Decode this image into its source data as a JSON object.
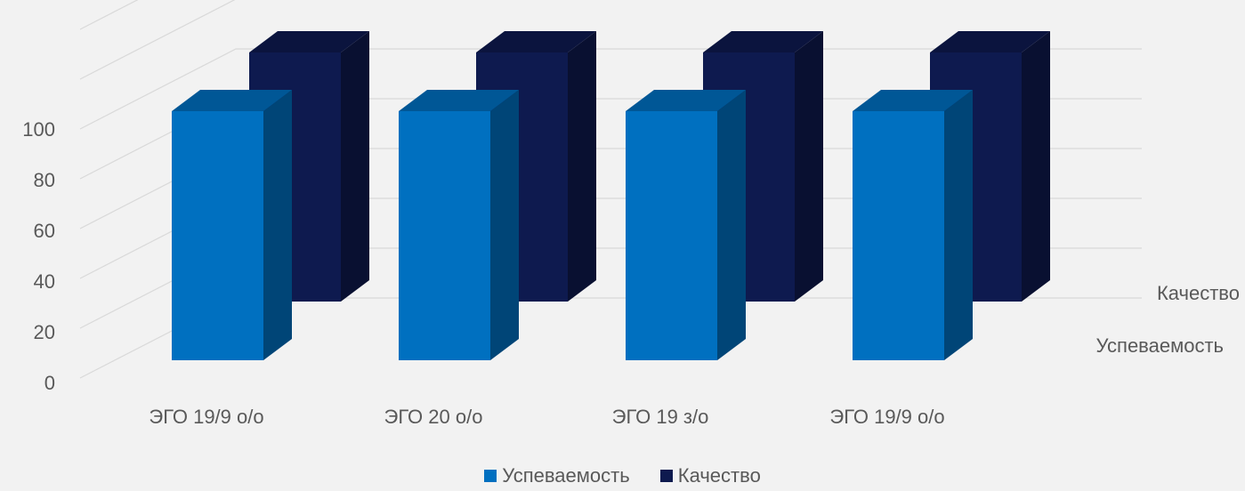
{
  "chart_data": {
    "type": "bar",
    "style": "3d-column",
    "categories": [
      "ЭГО 19/9 о/о",
      "ЭГО 20 о/о",
      "ЭГО 19 з/о",
      "ЭГО 19/9 о/о"
    ],
    "series": [
      {
        "name": "Успеваемость",
        "values": [
          100,
          100,
          100,
          100
        ],
        "color": "#0070c0"
      },
      {
        "name": "Качество",
        "values": [
          100,
          100,
          100,
          100
        ],
        "color": "#0e1a4f"
      }
    ],
    "y_ticks": [
      0,
      20,
      40,
      60,
      80,
      100
    ],
    "ylim": [
      0,
      100
    ],
    "depth_axis_labels": [
      "Качество",
      "Успеваемость"
    ],
    "grid": true,
    "legend_position": "bottom"
  }
}
